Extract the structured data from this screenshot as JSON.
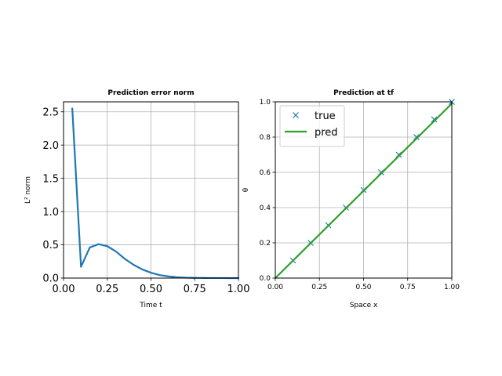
{
  "chart_data": [
    {
      "type": "line",
      "title": "Prediction error norm",
      "xlabel": "Time t",
      "ylabel": "L² norm",
      "xlim": [
        0.0,
        1.0
      ],
      "ylim": [
        0.0,
        2.65
      ],
      "xticks": [
        "0.00",
        "0.25",
        "0.50",
        "0.75",
        "1.00"
      ],
      "yticks": [
        "0.0",
        "0.5",
        "1.0",
        "1.5",
        "2.0",
        "2.5"
      ],
      "grid": true,
      "series": [
        {
          "color": "#1f77b4",
          "x": [
            0.05,
            0.1,
            0.15,
            0.2,
            0.25,
            0.3,
            0.35,
            0.4,
            0.45,
            0.5,
            0.55,
            0.6,
            0.65,
            0.7,
            0.75,
            0.8,
            0.85,
            0.9,
            0.95,
            1.0
          ],
          "y": [
            2.55,
            0.17,
            0.46,
            0.51,
            0.48,
            0.4,
            0.29,
            0.2,
            0.13,
            0.08,
            0.045,
            0.025,
            0.012,
            0.006,
            0.003,
            0.0015,
            0.001,
            0.0005,
            0.0003,
            0.0002
          ]
        }
      ]
    },
    {
      "type": "line",
      "title": "Prediction at tf",
      "xlabel": "Space x",
      "ylabel": "θ",
      "xlim": [
        0.0,
        1.0
      ],
      "ylim": [
        0.0,
        1.0
      ],
      "xticks": [
        "0.00",
        "0.25",
        "0.50",
        "0.75",
        "1.00"
      ],
      "yticks": [
        "0.0",
        "0.2",
        "0.4",
        "0.6",
        "0.8",
        "1.0"
      ],
      "grid": true,
      "legend_position": "upper-left",
      "series": [
        {
          "name": "true",
          "style": "markers",
          "marker": "x",
          "color": "#1f77b4",
          "x": [
            0.1,
            0.2,
            0.3,
            0.4,
            0.5,
            0.6,
            0.7,
            0.8,
            0.9,
            1.0
          ],
          "y": [
            0.1,
            0.2,
            0.3,
            0.4,
            0.5,
            0.6,
            0.7,
            0.8,
            0.9,
            1.0
          ]
        },
        {
          "name": "pred",
          "style": "line",
          "color": "#2ca02c",
          "x": [
            0.0,
            1.0
          ],
          "y": [
            0.0,
            0.99
          ]
        }
      ]
    }
  ]
}
